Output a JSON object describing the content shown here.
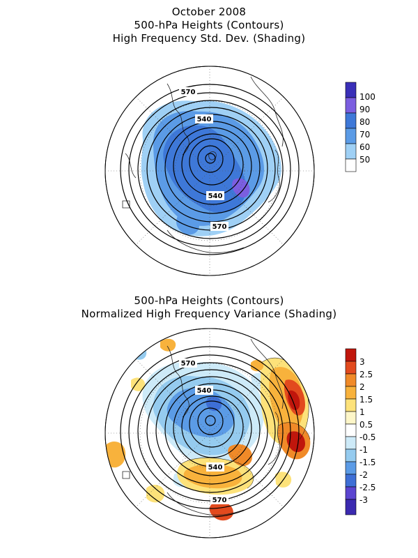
{
  "top_panel": {
    "titles": [
      "October 2008",
      "500-hPa Heights (Contours)",
      "High Frequency Std. Dev. (Shading)"
    ],
    "colorbar": {
      "labels": [
        "100",
        "90",
        "80",
        "70",
        "60",
        "50"
      ],
      "colors": [
        "#3a2fb8",
        "#7b5ee0",
        "#3e78d8",
        "#5b9be6",
        "#9fd0f5",
        "#ffffff"
      ]
    },
    "contour_labels": [
      "570",
      "540",
      "540",
      "570"
    ]
  },
  "bottom_panel": {
    "titles": [
      "500-hPa Heights (Contours)",
      "Normalized High Frequency Variance (Shading)"
    ],
    "colorbar": {
      "labels": [
        "3",
        "2.5",
        "2",
        "1.5",
        "1",
        "0.5",
        "-0.5",
        "-1",
        "-1.5",
        "-2",
        "-2.5",
        "-3"
      ],
      "colors": [
        "#c0160c",
        "#e24a1e",
        "#f08a28",
        "#f8b23c",
        "#fde27a",
        "#fdf6c8",
        "#ffffff",
        "#cdeaf8",
        "#95cbef",
        "#5b9be6",
        "#3e6fd6",
        "#5b45d0",
        "#3b2ab0"
      ]
    },
    "contour_labels": [
      "570",
      "540",
      "540",
      "570"
    ]
  }
}
